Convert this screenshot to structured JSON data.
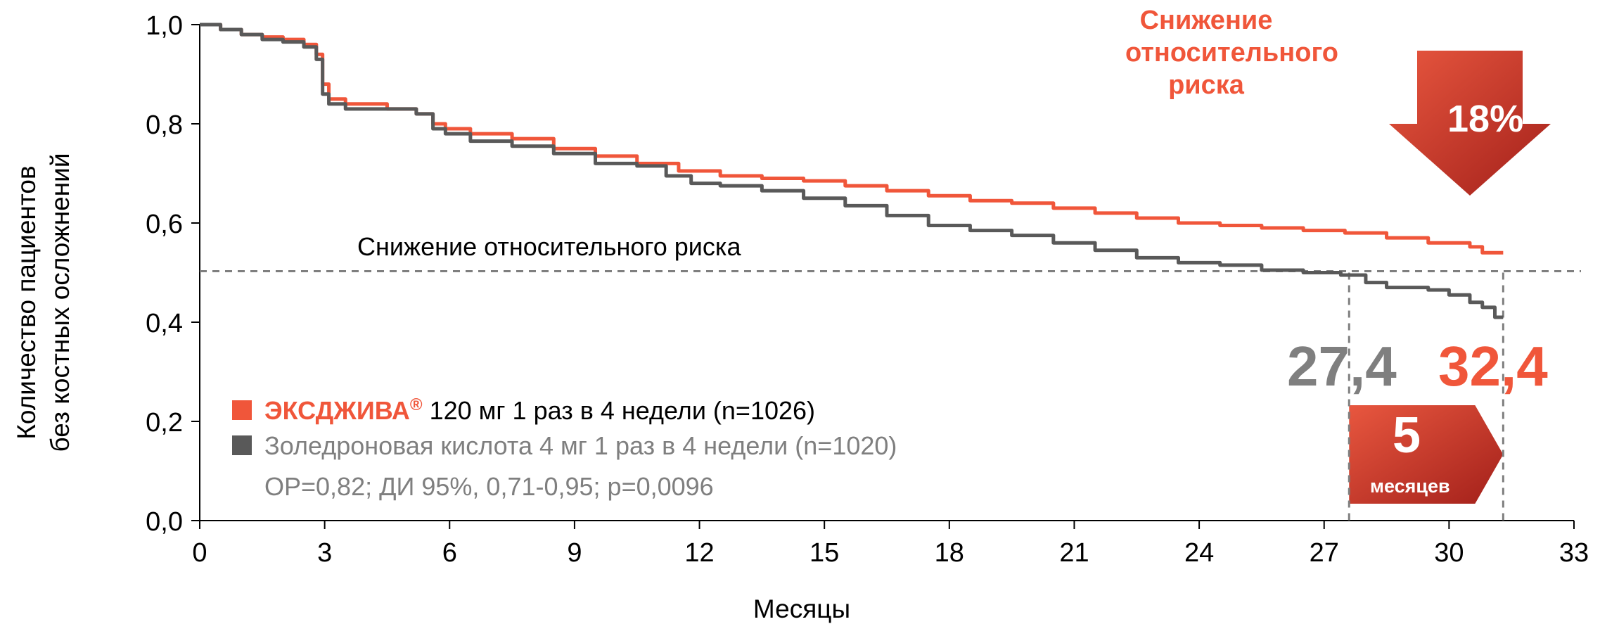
{
  "chart_data": {
    "type": "line",
    "xlabel": "Месяцы",
    "ylabel_lines": [
      "Количество пациентов",
      "без костных осложнений"
    ],
    "xlim": [
      0,
      33
    ],
    "ylim": [
      0,
      1
    ],
    "x_ticks": [
      "0",
      "3",
      "6",
      "9",
      "12",
      "15",
      "18",
      "21",
      "24",
      "27",
      "30",
      "33"
    ],
    "y_ticks": [
      "0,0",
      "0,2",
      "0,4",
      "0,6",
      "0,8",
      "1,0"
    ],
    "grid": false,
    "reference_line_y": 0.5,
    "reference_line_label": "Снижение относительного риска",
    "series": [
      {
        "name": "ЭКСДЖИВА® 120 мг 1 раз в 4 недели (n=1026)",
        "color": "#f0563a",
        "points": [
          [
            0,
            1.0
          ],
          [
            0.5,
            0.99
          ],
          [
            1,
            0.98
          ],
          [
            1.5,
            0.975
          ],
          [
            2,
            0.97
          ],
          [
            2.5,
            0.96
          ],
          [
            2.8,
            0.94
          ],
          [
            2.95,
            0.88
          ],
          [
            3.1,
            0.85
          ],
          [
            3.5,
            0.84
          ],
          [
            4.5,
            0.83
          ],
          [
            5.2,
            0.82
          ],
          [
            5.6,
            0.8
          ],
          [
            5.9,
            0.79
          ],
          [
            6.5,
            0.78
          ],
          [
            7.5,
            0.77
          ],
          [
            8.5,
            0.75
          ],
          [
            9.5,
            0.735
          ],
          [
            10.5,
            0.72
          ],
          [
            11.5,
            0.705
          ],
          [
            12.5,
            0.695
          ],
          [
            13.5,
            0.69
          ],
          [
            14.5,
            0.685
          ],
          [
            15.5,
            0.675
          ],
          [
            16.5,
            0.665
          ],
          [
            17.5,
            0.655
          ],
          [
            18.5,
            0.645
          ],
          [
            19.5,
            0.64
          ],
          [
            20.5,
            0.63
          ],
          [
            21.5,
            0.62
          ],
          [
            22.5,
            0.61
          ],
          [
            23.5,
            0.6
          ],
          [
            24.5,
            0.595
          ],
          [
            25.5,
            0.59
          ],
          [
            26.5,
            0.585
          ],
          [
            27.5,
            0.58
          ],
          [
            28.5,
            0.57
          ],
          [
            29.5,
            0.56
          ],
          [
            30.5,
            0.552
          ],
          [
            30.8,
            0.54
          ],
          [
            31.3,
            0.54
          ]
        ]
      },
      {
        "name": "Золедроновая кислота 4 мг 1 раз в 4 недели (n=1020)",
        "color": "#595959",
        "points": [
          [
            0,
            1.0
          ],
          [
            0.5,
            0.99
          ],
          [
            1,
            0.98
          ],
          [
            1.5,
            0.97
          ],
          [
            2,
            0.965
          ],
          [
            2.5,
            0.955
          ],
          [
            2.8,
            0.93
          ],
          [
            2.95,
            0.86
          ],
          [
            3.1,
            0.84
          ],
          [
            3.5,
            0.83
          ],
          [
            4.5,
            0.83
          ],
          [
            5.2,
            0.82
          ],
          [
            5.6,
            0.79
          ],
          [
            5.9,
            0.78
          ],
          [
            6.5,
            0.765
          ],
          [
            7.5,
            0.755
          ],
          [
            8.5,
            0.74
          ],
          [
            9.5,
            0.72
          ],
          [
            10.5,
            0.715
          ],
          [
            11.2,
            0.695
          ],
          [
            11.8,
            0.68
          ],
          [
            12.5,
            0.675
          ],
          [
            13.5,
            0.665
          ],
          [
            14.5,
            0.65
          ],
          [
            15.5,
            0.635
          ],
          [
            16.5,
            0.615
          ],
          [
            17.5,
            0.595
          ],
          [
            18.5,
            0.585
          ],
          [
            19.5,
            0.575
          ],
          [
            20.5,
            0.56
          ],
          [
            21.5,
            0.545
          ],
          [
            22.5,
            0.53
          ],
          [
            23.5,
            0.52
          ],
          [
            24.5,
            0.515
          ],
          [
            25.5,
            0.505
          ],
          [
            26.5,
            0.5
          ],
          [
            27.4,
            0.495
          ],
          [
            28,
            0.48
          ],
          [
            28.5,
            0.47
          ],
          [
            29.5,
            0.465
          ],
          [
            30,
            0.455
          ],
          [
            30.5,
            0.44
          ],
          [
            30.8,
            0.43
          ],
          [
            31.1,
            0.41
          ],
          [
            31.3,
            0.41
          ]
        ]
      }
    ],
    "medians": [
      {
        "value": 27.4,
        "label": "27,4",
        "color": "#7f7f7f"
      },
      {
        "value": 32.4,
        "label": "32,4",
        "color": "#f0563a"
      }
    ],
    "annotations": {
      "risk_title": "Снижение относительного риска",
      "risk_pct": "18%",
      "diff_num": "5",
      "diff_unit": "месяцев"
    },
    "legend": {
      "brand": "ЭКСДЖИВА",
      "brand_reg": "®",
      "brand_rest": " 120 мг 1 раз в 4 недели (n=1026)",
      "comparator": "Золедроновая кислота 4 мг 1 раз в 4 недели (n=1020)",
      "stats": "ОР=0,82; ДИ 95%, 0,71-0,95; p=0,0096"
    }
  }
}
